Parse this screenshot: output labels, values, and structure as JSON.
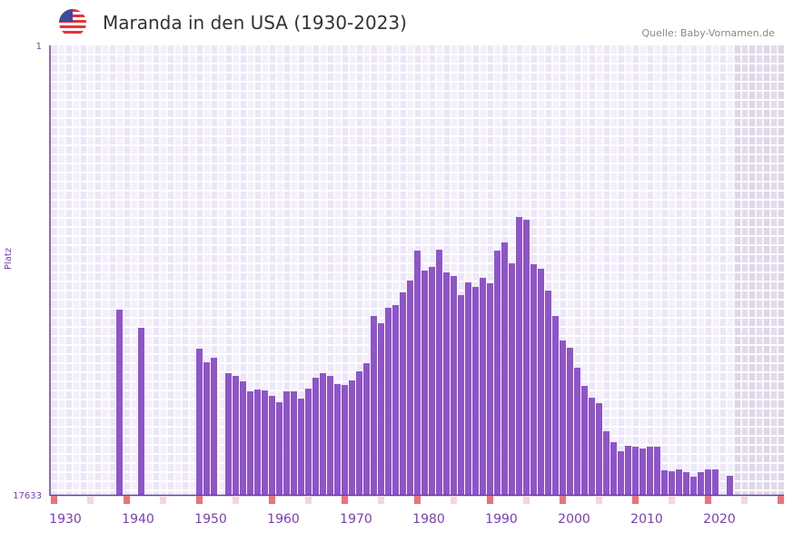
{
  "header": {
    "title": "Maranda in den USA (1930-2023)",
    "source": "Quelle: Baby-Vornamen.de",
    "flag_icon": "us-flag-icon"
  },
  "chart_data": {
    "type": "bar",
    "title": "Maranda in den USA (1930-2023)",
    "ylabel": "Platz",
    "xlabel": "",
    "y_axis_inverted": true,
    "ylim": [
      1,
      17633
    ],
    "y_tick_labels": [
      "1",
      "17633"
    ],
    "xlim": [
      1928,
      2028
    ],
    "x_tick_labels": [
      "1930",
      "1940",
      "1950",
      "1960",
      "1970",
      "1980",
      "1990",
      "2000",
      "2010",
      "2020"
    ],
    "shaded_from_year": 2022,
    "grid": true,
    "colors": {
      "bar": "#8e55c8",
      "axis": "#6a3aa8",
      "marker": "#e8737a",
      "marker_light": "#f5d5de",
      "shade": "#e2dcec"
    },
    "x": [
      1937,
      1940,
      1948,
      1949,
      1950,
      1952,
      1953,
      1954,
      1955,
      1956,
      1957,
      1958,
      1959,
      1960,
      1961,
      1962,
      1963,
      1964,
      1965,
      1966,
      1967,
      1968,
      1969,
      1970,
      1971,
      1972,
      1973,
      1974,
      1975,
      1976,
      1977,
      1978,
      1979,
      1980,
      1981,
      1982,
      1983,
      1984,
      1985,
      1986,
      1987,
      1988,
      1989,
      1990,
      1991,
      1992,
      1993,
      1994,
      1995,
      1996,
      1997,
      1998,
      1999,
      2000,
      2001,
      2002,
      2003,
      2004,
      2005,
      2006,
      2007,
      2008,
      2009,
      2010,
      2011,
      2012,
      2013,
      2014,
      2015,
      2016,
      2017,
      2018,
      2019,
      2021
    ],
    "values": [
      10367,
      11078,
      11898,
      12432,
      12254,
      12860,
      12967,
      13180,
      13572,
      13501,
      13537,
      13750,
      14000,
      13572,
      13572,
      13857,
      13465,
      13038,
      12860,
      12967,
      13287,
      13323,
      13145,
      12789,
      12468,
      10616,
      10901,
      10295,
      10188,
      9690,
      9226,
      8051,
      8834,
      8692,
      8015,
      8906,
      9048,
      9796,
      9298,
      9476,
      9120,
      9333,
      8051,
      7730,
      8550,
      6733,
      6840,
      8585,
      8763,
      9618,
      10616,
      11577,
      11862,
      12646,
      13358,
      13821,
      14035,
      15139,
      15566,
      15922,
      15709,
      15745,
      15816,
      15745,
      15745,
      16671,
      16707,
      16635,
      16742,
      16920,
      16742,
      16635,
      16635,
      16885
    ]
  }
}
